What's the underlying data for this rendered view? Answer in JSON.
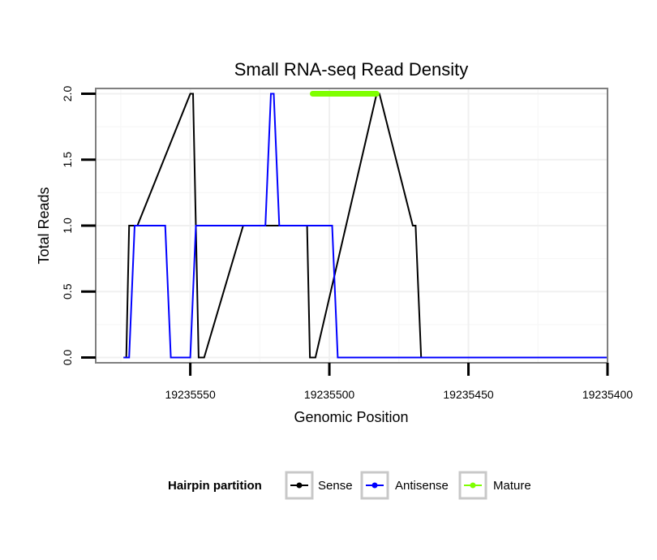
{
  "chart_data": {
    "type": "line",
    "title": "Small RNA-seq Read Density",
    "xlabel": "Genomic Position",
    "ylabel": "Total Reads",
    "x_reversed": true,
    "xlim": [
      19235584,
      19235400
    ],
    "ylim": [
      -0.04,
      2.04
    ],
    "xticks": [
      19235550,
      19235500,
      19235450,
      19235400
    ],
    "xtick_labels": [
      "19235550",
      "19235500",
      "19235450",
      "19235400"
    ],
    "yticks": [
      0.0,
      0.5,
      1.0,
      1.5,
      2.0
    ],
    "ytick_labels": [
      "0.0",
      "0.5",
      "1.0",
      "1.5",
      "2.0"
    ],
    "grid": true,
    "legend": {
      "title": "Hairpin partition",
      "placement": "bottom",
      "entries": [
        "Sense",
        "Antisense",
        "Mature"
      ]
    },
    "series": [
      {
        "name": "Sense",
        "color": "#000000",
        "x": [
          19235574,
          19235573,
          19235572,
          19235569,
          19235550,
          19235549,
          19235547,
          19235545,
          19235531,
          19235518,
          19235517,
          19235508,
          19235507,
          19235505,
          19235483,
          19235482,
          19235470,
          19235469,
          19235467,
          19235400
        ],
        "y": [
          0,
          0,
          1,
          1,
          2,
          2,
          0,
          0,
          1,
          1,
          1,
          1,
          0,
          0,
          2,
          2,
          1,
          1,
          0,
          0
        ]
      },
      {
        "name": "Antisense",
        "color": "#0000ff",
        "x": [
          19235574,
          19235572,
          19235570,
          19235559,
          19235557,
          19235550,
          19235548,
          19235523,
          19235521,
          19235520,
          19235518,
          19235499,
          19235497,
          19235495,
          19235400
        ],
        "y": [
          0,
          0,
          1,
          1,
          0,
          0,
          1,
          1,
          2,
          2,
          1,
          1,
          0,
          0,
          0
        ]
      },
      {
        "name": "Mature",
        "color": "#7fff00",
        "x": [
          19235506,
          19235483
        ],
        "y": [
          2,
          2
        ]
      }
    ]
  }
}
